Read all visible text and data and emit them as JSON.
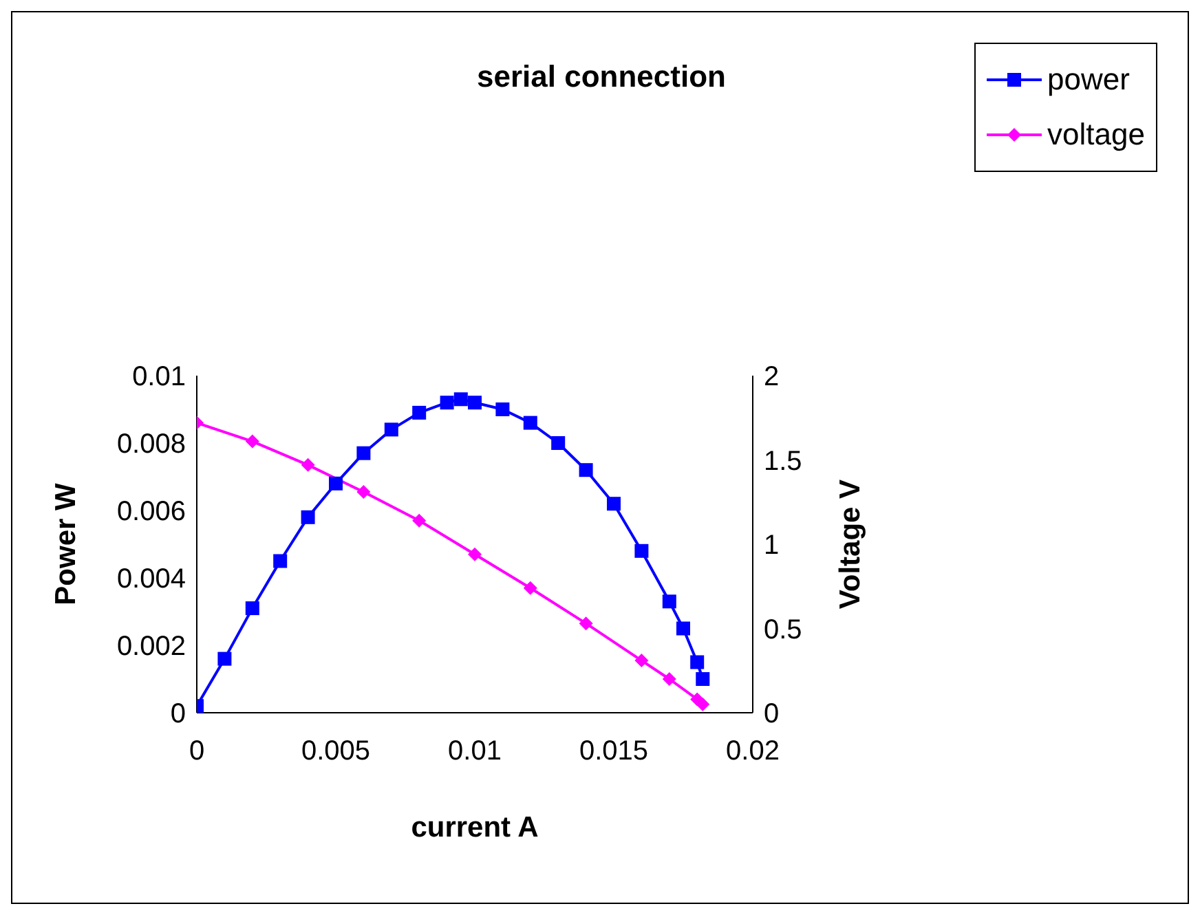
{
  "chart_data": {
    "type": "line",
    "title": "serial connection",
    "xlabel": "current A",
    "ylabel": "Power  W",
    "y2label": "Voltage V",
    "xlim": [
      0,
      0.02
    ],
    "xticks": [
      0,
      0.005,
      0.01,
      0.015,
      0.02
    ],
    "ylim": [
      0,
      0.01
    ],
    "yticks": [
      0,
      0.002,
      0.004,
      0.006,
      0.008,
      0.01
    ],
    "y2lim": [
      0,
      2
    ],
    "y2ticks": [
      0,
      0.5,
      1,
      1.5,
      2
    ],
    "legend": "top right",
    "series": [
      {
        "name": "power",
        "color": "#0000ff",
        "marker": "square",
        "x": [
          0,
          0.001,
          0.002,
          0.003,
          0.004,
          0.005,
          0.006,
          0.007,
          0.008,
          0.009,
          0.0095,
          0.01,
          0.011,
          0.012,
          0.013,
          0.014,
          0.015,
          0.016,
          0.017,
          0.0175,
          0.018,
          0.0182
        ],
        "values": [
          0.0002,
          0.0016,
          0.0031,
          0.0045,
          0.0058,
          0.0068,
          0.0077,
          0.0084,
          0.0089,
          0.0092,
          0.0093,
          0.0092,
          0.009,
          0.0086,
          0.008,
          0.0072,
          0.0062,
          0.0048,
          0.0033,
          0.0025,
          0.0015,
          0.001
        ]
      },
      {
        "name": "voltage",
        "color": "#ff00ff",
        "marker": "diamond",
        "axis": "y2",
        "x": [
          0,
          0.002,
          0.004,
          0.006,
          0.008,
          0.01,
          0.012,
          0.014,
          0.016,
          0.017,
          0.018,
          0.0182
        ],
        "values": [
          1.72,
          1.61,
          1.47,
          1.31,
          1.14,
          0.94,
          0.74,
          0.53,
          0.31,
          0.2,
          0.08,
          0.05
        ]
      }
    ]
  }
}
